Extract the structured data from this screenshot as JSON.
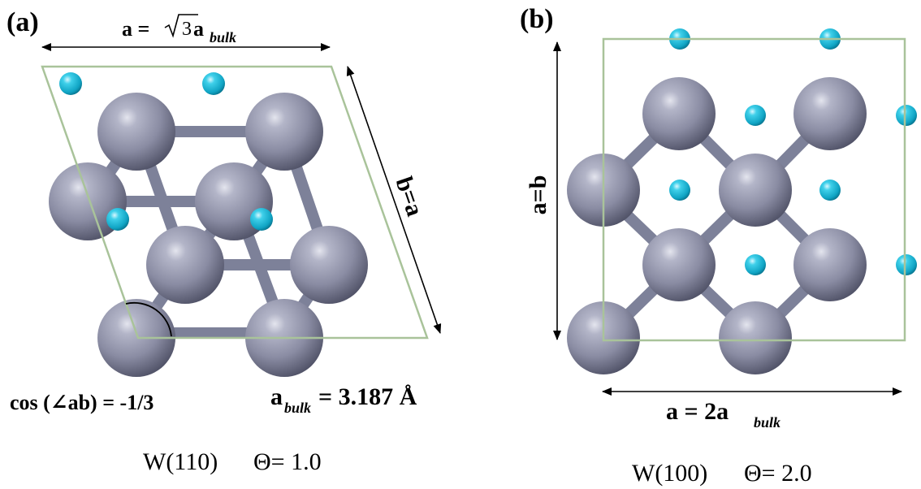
{
  "panel_a": {
    "tag": "(a)",
    "lattice_a_prefix": "a = ",
    "lattice_a_root": "3",
    "lattice_a_mid": " a",
    "lattice_a_sub": "bulk",
    "side_b": "b=a",
    "cos_label": "cos (∠ab) = -1/3",
    "abulk_main": "a",
    "abulk_sub": "bulk",
    "abulk_value": " = 3.187 Å",
    "caption_surface": "W(110)",
    "caption_coverage": "Θ= 1.0"
  },
  "panel_b": {
    "tag": "(b)",
    "side_left": "a=b",
    "bottom_main": "a = 2a",
    "bottom_sub": "bulk",
    "caption_surface": "W(100)",
    "caption_coverage": "Θ= 2.0"
  },
  "colors": {
    "tungsten_atom": "#8d8fa6",
    "adsorbate_atom": "#17b8d6",
    "cell_outline": "#a9c39a",
    "bond": "#858aa3"
  }
}
